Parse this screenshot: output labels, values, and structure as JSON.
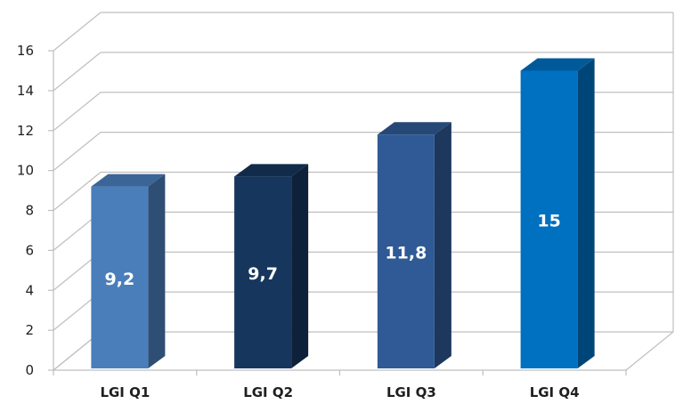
{
  "chart_data": {
    "type": "bar",
    "style": "3d-column",
    "categories": [
      "LGI Q1",
      "LGI Q2",
      "LGI Q3",
      "LGI Q4"
    ],
    "values": [
      9.2,
      9.7,
      11.8,
      15
    ],
    "data_labels": [
      "9,2",
      "9,7",
      "11,8",
      "15"
    ],
    "ylim": [
      0,
      16
    ],
    "yticks": [
      0,
      2,
      4,
      6,
      8,
      10,
      12,
      14,
      16
    ],
    "grid": true,
    "legend": "none",
    "title": "",
    "xlabel": "",
    "ylabel": "",
    "bar_colors": [
      "#4a7ebb",
      "#17365d",
      "#2f5a95",
      "#0070c0"
    ],
    "grid_color": "#bfbfbf",
    "text_color": "#1f1f1f",
    "data_label_color": "#ffffff"
  }
}
